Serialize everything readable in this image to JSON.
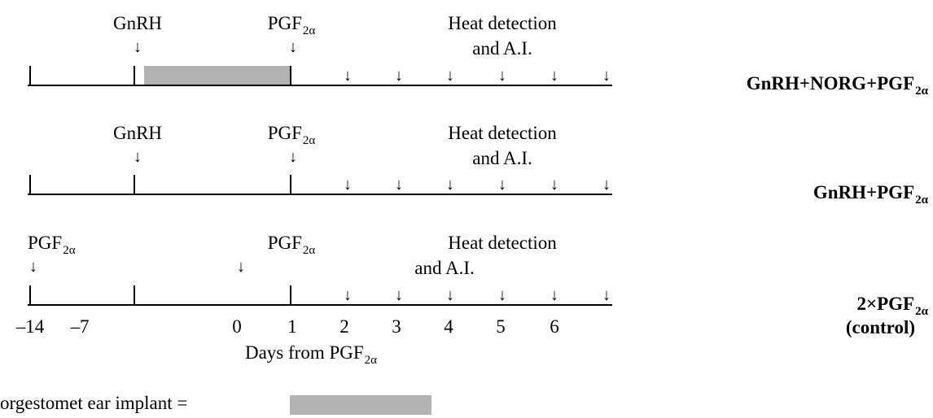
{
  "rows": [
    {
      "labels": {
        "gnrh": "GnRH",
        "pgf_main": "PGF",
        "pgf_sub": "2α",
        "heat1": "Heat detection",
        "heat2": "and A.I."
      },
      "protocol_main": "GnRH+NORG+PGF",
      "protocol_sub": "2α",
      "implant": true
    },
    {
      "labels": {
        "gnrh": "GnRH",
        "pgf_main": "PGF",
        "pgf_sub": "2α",
        "heat1": "Heat detection",
        "heat2": "and A.I."
      },
      "protocol_main": "GnRH+PGF",
      "protocol_sub": "2α",
      "implant": false
    },
    {
      "labels": {
        "pgf_first_main": "PGF",
        "pgf_first_sub": "2α",
        "pgf_main": "PGF",
        "pgf_sub": "2α",
        "heat1": "Heat detection",
        "heat2": "and A.I."
      },
      "protocol_main": "2×PGF",
      "protocol_sub": "2α",
      "protocol_line2": "(control)",
      "implant": false
    }
  ],
  "axis": {
    "ticks": [
      "–14",
      "–7",
      "0",
      "1",
      "2",
      "3",
      "4",
      "5",
      "6"
    ],
    "title_main": "Days from PGF",
    "title_sub": "2α"
  },
  "legend": {
    "label": "orgestomet ear implant ="
  },
  "colors": {
    "implant": "#b3b3b3",
    "line": "#000000"
  }
}
